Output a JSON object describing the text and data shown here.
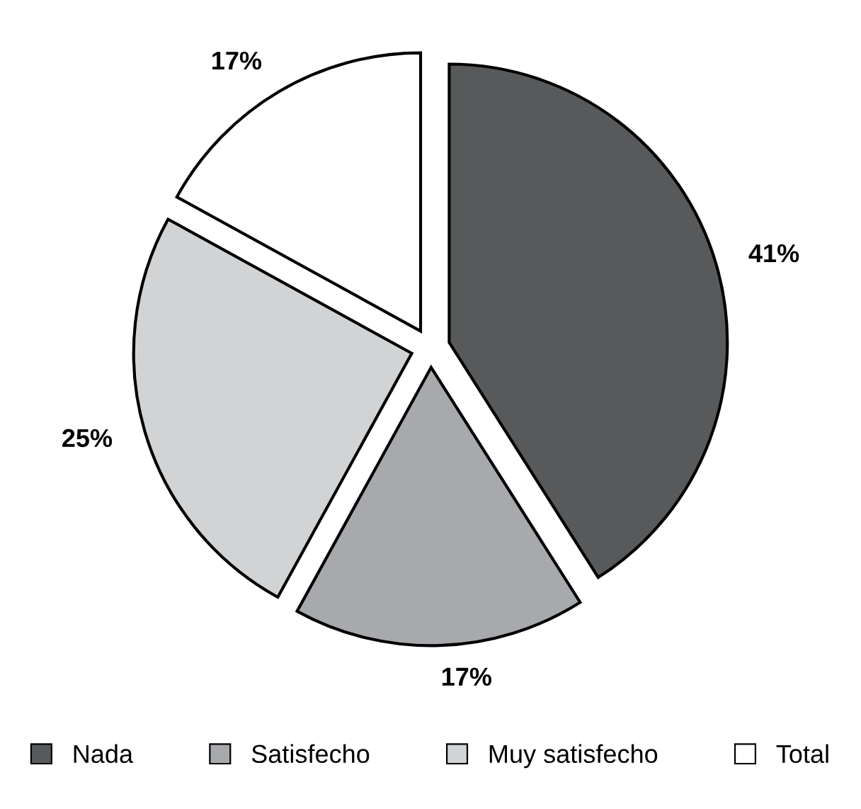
{
  "chart_data": {
    "type": "pie",
    "categories": [
      "Nada",
      "Satisfecho",
      "Muy satisfecho",
      "Total"
    ],
    "values": [
      41,
      17,
      25,
      17
    ],
    "value_labels": [
      "41%",
      "17%",
      "25%",
      "17%"
    ],
    "colors": [
      "#58595b",
      "#a7a9ac",
      "#d1d3d4",
      "#ffffff"
    ],
    "legend": "bottom"
  }
}
